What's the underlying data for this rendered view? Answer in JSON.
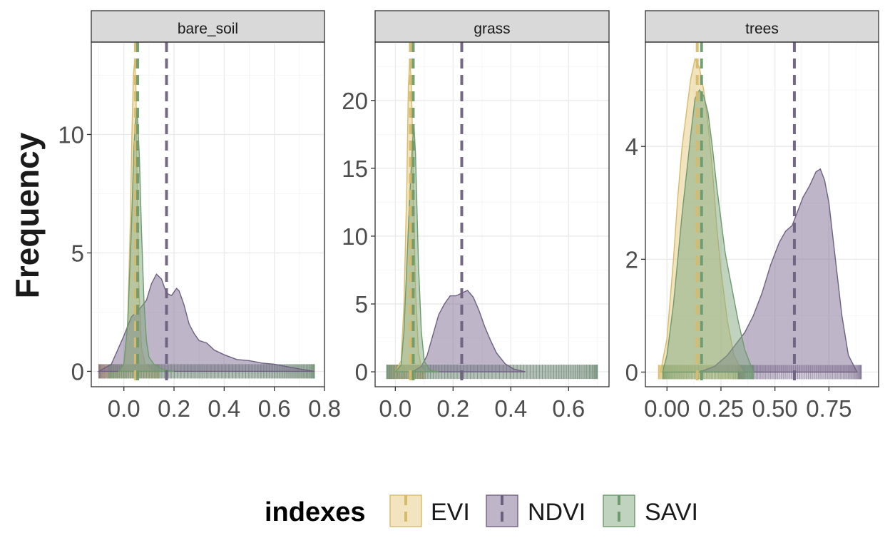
{
  "chart_data": {
    "type": "area",
    "ylabel": "Frequency",
    "colors": {
      "EVI": {
        "fill": "#E4C97F",
        "line": "#D8BB6A"
      },
      "NDVI": {
        "fill": "#7D6E91",
        "line": "#6E6080"
      },
      "SAVI": {
        "fill": "#7FA77F",
        "line": "#6E9A6E"
      }
    },
    "legend": {
      "title": "indexes",
      "position": "bottom",
      "items": [
        "EVI",
        "NDVI",
        "SAVI"
      ]
    },
    "panels": [
      {
        "strip": "bare_soil",
        "xlim": [
          -0.13,
          0.8
        ],
        "ylim": [
          -0.65,
          13.9
        ],
        "xticks": [
          0.0,
          0.2,
          0.4,
          0.6,
          0.8
        ],
        "xtick_labels": [
          "0.0",
          "0.2",
          "0.4",
          "0.6",
          "0.8"
        ],
        "yticks": [
          0,
          5,
          10
        ],
        "ytick_labels": [
          "0",
          "5",
          "10"
        ],
        "grid": true,
        "series": [
          {
            "name": "EVI",
            "means": 0.046,
            "rug": [
              -0.1,
              0.14
            ],
            "x": [
              -0.02,
              0.0,
              0.015,
              0.025,
              0.032,
              0.038,
              0.043,
              0.048,
              0.053,
              0.06,
              0.07,
              0.085,
              0.1,
              0.12
            ],
            "y": [
              0.0,
              0.3,
              2.0,
              6.0,
              10.0,
              12.5,
              13.1,
              12.0,
              8.0,
              3.5,
              1.0,
              0.3,
              0.1,
              0.0
            ]
          },
          {
            "name": "NDVI",
            "means": 0.17,
            "rug": [
              -0.1,
              0.76
            ],
            "x": [
              -0.1,
              -0.05,
              0.0,
              0.03,
              0.06,
              0.09,
              0.11,
              0.13,
              0.15,
              0.17,
              0.19,
              0.21,
              0.22,
              0.24,
              0.26,
              0.28,
              0.3,
              0.33,
              0.36,
              0.4,
              0.45,
              0.5,
              0.55,
              0.6,
              0.65,
              0.7,
              0.76
            ],
            "y": [
              0.0,
              0.3,
              1.5,
              2.3,
              2.6,
              3.0,
              3.7,
              4.1,
              3.9,
              3.3,
              3.2,
              3.5,
              3.4,
              2.8,
              2.0,
              1.6,
              1.3,
              1.2,
              0.9,
              0.7,
              0.5,
              0.45,
              0.35,
              0.3,
              0.2,
              0.1,
              0.0
            ]
          },
          {
            "name": "SAVI",
            "means": 0.055,
            "rug": [
              -0.06,
              0.76
            ],
            "x": [
              -0.02,
              0.0,
              0.015,
              0.03,
              0.04,
              0.05,
              0.055,
              0.062,
              0.07,
              0.08,
              0.09,
              0.1,
              0.12,
              0.15,
              0.2
            ],
            "y": [
              0.0,
              0.3,
              2.0,
              6.0,
              9.5,
              11.0,
              10.6,
              9.0,
              6.0,
              3.0,
              1.3,
              0.6,
              0.3,
              0.1,
              0.0
            ]
          }
        ]
      },
      {
        "strip": "grass",
        "xlim": [
          -0.07,
          0.74
        ],
        "ylim": [
          -1.1,
          24.3
        ],
        "xticks": [
          0.0,
          0.2,
          0.4,
          0.6
        ],
        "xtick_labels": [
          "0.0",
          "0.2",
          "0.4",
          "0.6"
        ],
        "yticks": [
          0,
          5,
          10,
          15,
          20
        ],
        "ytick_labels": [
          "0",
          "5",
          "10",
          "15",
          "20"
        ],
        "grid": true,
        "series": [
          {
            "name": "EVI",
            "means": 0.052,
            "rug": [
              -0.02,
              0.1
            ],
            "x": [
              0.0,
              0.02,
              0.03,
              0.04,
              0.045,
              0.05,
              0.055,
              0.06,
              0.065,
              0.07,
              0.08,
              0.09,
              0.1
            ],
            "y": [
              0.0,
              0.8,
              5.0,
              14.0,
              21.0,
              23.0,
              21.5,
              17.0,
              11.0,
              6.0,
              1.5,
              0.3,
              0.0
            ]
          },
          {
            "name": "NDVI",
            "means": 0.23,
            "rug": [
              -0.03,
              0.7
            ],
            "x": [
              0.06,
              0.09,
              0.11,
              0.13,
              0.15,
              0.17,
              0.19,
              0.21,
              0.23,
              0.25,
              0.27,
              0.29,
              0.31,
              0.33,
              0.35,
              0.38,
              0.41,
              0.45
            ],
            "y": [
              0.0,
              0.4,
              1.2,
              2.7,
              4.2,
              5.0,
              5.6,
              5.6,
              5.8,
              6.0,
              5.5,
              4.5,
              3.3,
              2.3,
              1.4,
              0.6,
              0.2,
              0.0
            ]
          },
          {
            "name": "SAVI",
            "means": 0.062,
            "rug": [
              -0.03,
              0.7
            ],
            "x": [
              0.0,
              0.02,
              0.03,
              0.04,
              0.05,
              0.055,
              0.06,
              0.065,
              0.07,
              0.075,
              0.08,
              0.09,
              0.1,
              0.12,
              0.15
            ],
            "y": [
              0.0,
              0.5,
              3.0,
              8.0,
              13.0,
              15.0,
              17.0,
              18.0,
              16.0,
              12.0,
              8.0,
              3.0,
              0.8,
              0.1,
              0.0
            ]
          }
        ]
      },
      {
        "strip": "trees",
        "xlim": [
          -0.1,
          0.98
        ],
        "ylim": [
          -0.26,
          5.85
        ],
        "xticks": [
          0.0,
          0.25,
          0.5,
          0.75
        ],
        "xtick_labels": [
          "0.00",
          "0.25",
          "0.50",
          "0.75"
        ],
        "yticks": [
          0,
          2,
          4
        ],
        "ytick_labels": [
          "0",
          "2",
          "4"
        ],
        "grid": true,
        "series": [
          {
            "name": "EVI",
            "means": 0.14,
            "rug": [
              -0.04,
              0.36
            ],
            "x": [
              -0.03,
              0.0,
              0.03,
              0.05,
              0.07,
              0.09,
              0.11,
              0.13,
              0.15,
              0.17,
              0.19,
              0.21,
              0.23,
              0.25,
              0.28,
              0.31,
              0.35
            ],
            "y": [
              0.0,
              0.6,
              2.0,
              3.1,
              4.0,
              4.6,
              5.2,
              5.55,
              5.4,
              5.0,
              4.4,
              3.6,
              2.6,
              1.8,
              0.9,
              0.3,
              0.0
            ]
          },
          {
            "name": "NDVI",
            "means": 0.59,
            "rug": [
              0.33,
              0.9
            ],
            "x": [
              0.15,
              0.22,
              0.28,
              0.32,
              0.36,
              0.4,
              0.44,
              0.48,
              0.52,
              0.55,
              0.58,
              0.6,
              0.63,
              0.66,
              0.69,
              0.71,
              0.73,
              0.75,
              0.78,
              0.81,
              0.84,
              0.88
            ],
            "y": [
              0.0,
              0.1,
              0.3,
              0.5,
              0.7,
              1.0,
              1.4,
              1.9,
              2.3,
              2.5,
              2.6,
              2.8,
              3.1,
              3.3,
              3.55,
              3.6,
              3.4,
              3.0,
              2.0,
              1.0,
              0.3,
              0.0
            ]
          },
          {
            "name": "SAVI",
            "means": 0.16,
            "rug": [
              -0.02,
              0.4
            ],
            "x": [
              -0.02,
              0.0,
              0.03,
              0.05,
              0.07,
              0.09,
              0.11,
              0.13,
              0.15,
              0.17,
              0.19,
              0.21,
              0.23,
              0.25,
              0.27,
              0.3,
              0.33,
              0.36,
              0.4
            ],
            "y": [
              0.0,
              0.3,
              1.2,
              2.0,
              2.8,
              3.5,
              4.2,
              4.85,
              5.0,
              4.9,
              4.6,
              4.0,
              3.3,
              2.7,
              2.1,
              1.5,
              0.9,
              0.4,
              0.0
            ]
          }
        ]
      }
    ]
  }
}
